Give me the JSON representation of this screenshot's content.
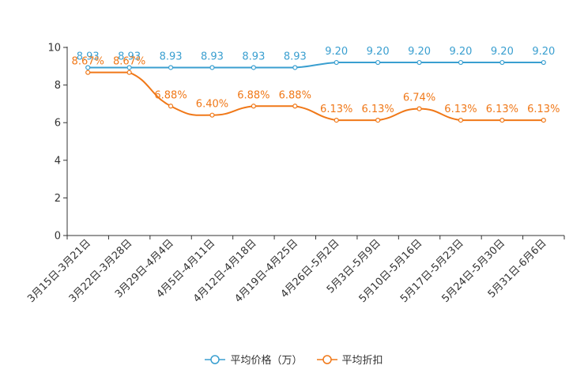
{
  "chart_data": {
    "type": "line",
    "categories": [
      "3月15日-3月21日",
      "3月22日-3月28日",
      "3月29日-4月4日",
      "4月5日-4月11日",
      "4月12日-4月18日",
      "4月19日-4月25日",
      "4月26日-5月2日",
      "5月3日-5月9日",
      "5月10日-5月16日",
      "5月17日-5月23日",
      "5月24日-5月30日",
      "5月31日-6月6日"
    ],
    "yticks": [
      "0",
      "2",
      "4",
      "6",
      "8",
      "10"
    ],
    "ylim": [
      0,
      10
    ],
    "series": [
      {
        "name": "平均价格（万）",
        "color": "#3a9fd0",
        "values": [
          8.93,
          8.93,
          8.93,
          8.93,
          8.93,
          8.93,
          9.2,
          9.2,
          9.2,
          9.2,
          9.2,
          9.2
        ],
        "labels": [
          "8.93",
          "8.93",
          "8.93",
          "8.93",
          "8.93",
          "8.93",
          "9.20",
          "9.20",
          "9.20",
          "9.20",
          "9.20",
          "9.20"
        ]
      },
      {
        "name": "平均折扣",
        "color": "#f07818",
        "values": [
          8.67,
          8.67,
          6.88,
          6.4,
          6.88,
          6.88,
          6.13,
          6.13,
          6.74,
          6.13,
          6.13,
          6.13
        ],
        "labels": [
          "8.67%",
          "8.67%",
          "6.88%",
          "6.40%",
          "6.88%",
          "6.88%",
          "6.13%",
          "6.13%",
          "6.74%",
          "6.13%",
          "6.13%",
          "6.13%"
        ]
      }
    ]
  },
  "legend": {
    "price_label": "平均价格（万）",
    "discount_label": "平均折扣"
  }
}
